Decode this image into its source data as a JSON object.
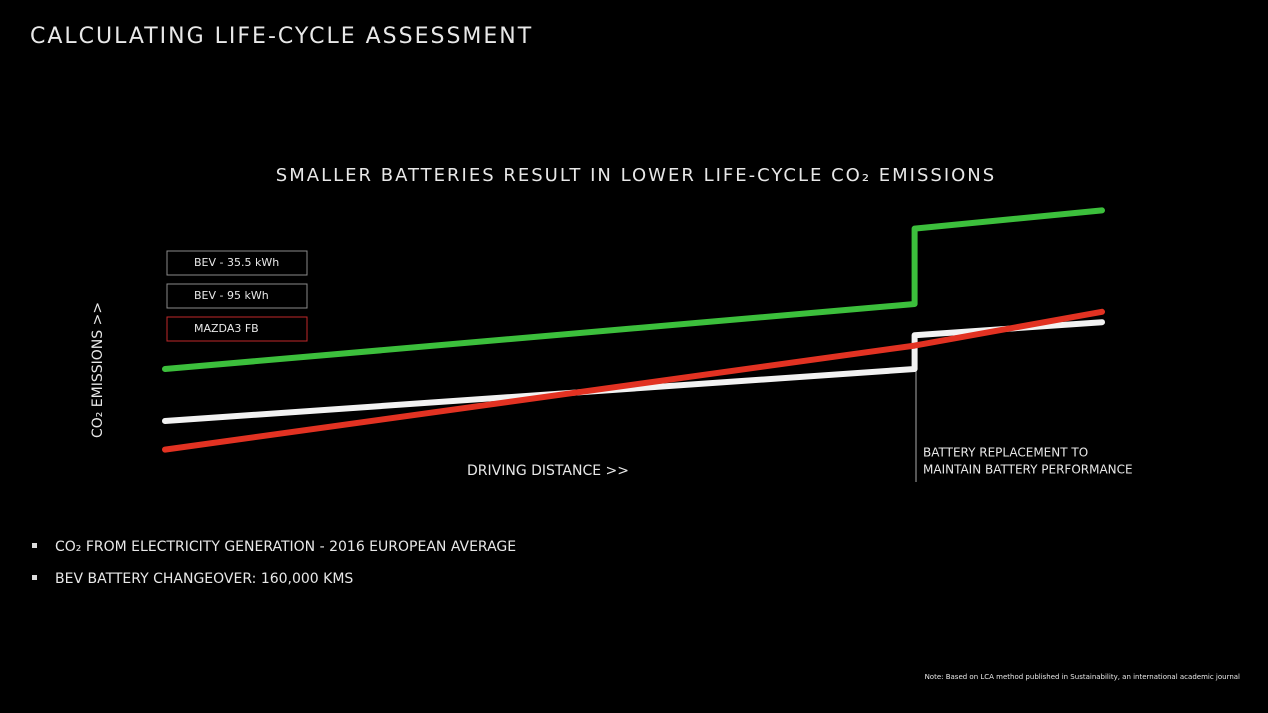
{
  "chart_data": {
    "type": "line",
    "title": "CALCULATING LIFE-CYCLE ASSESSMENT",
    "subtitle": "SMALLER BATTERIES RESULT IN LOWER LIFE-CYCLE CO₂ EMISSIONS",
    "y_label": "CO₂ EMISSIONS >>",
    "x_label": "DRIVING DISTANCE >>",
    "x": [
      0,
      160000,
      160000,
      200000
    ],
    "xlim": [
      0,
      200000
    ],
    "ylim": [
      0,
      100
    ],
    "series": [
      {
        "name": "BEV - 35.5 kWh",
        "color": "#f2f2f2",
        "legend_border": "#8a8a8a",
        "values": [
          15,
          35,
          48,
          53
        ]
      },
      {
        "name": "BEV - 95 kWh",
        "color": "#3cbf3c",
        "legend_border": "#8a8a8a",
        "values": [
          35,
          60,
          89,
          96
        ]
      },
      {
        "name": "MAZDA3 FB",
        "color": "#e23222",
        "legend_border": "#c0282a",
        "values": [
          4,
          44,
          44,
          57
        ]
      }
    ],
    "annotation": [
      "BATTERY REPLACEMENT TO",
      "MAINTAIN BATTERY PERFORMANCE"
    ]
  },
  "notes": [
    "CO₂ FROM ELECTRICITY GENERATION - 2016 EUROPEAN AVERAGE",
    "BEV BATTERY CHANGEOVER: 160,000 KMS"
  ],
  "footnote": "Note: Based on LCA method published in Sustainability, an international academic journal"
}
